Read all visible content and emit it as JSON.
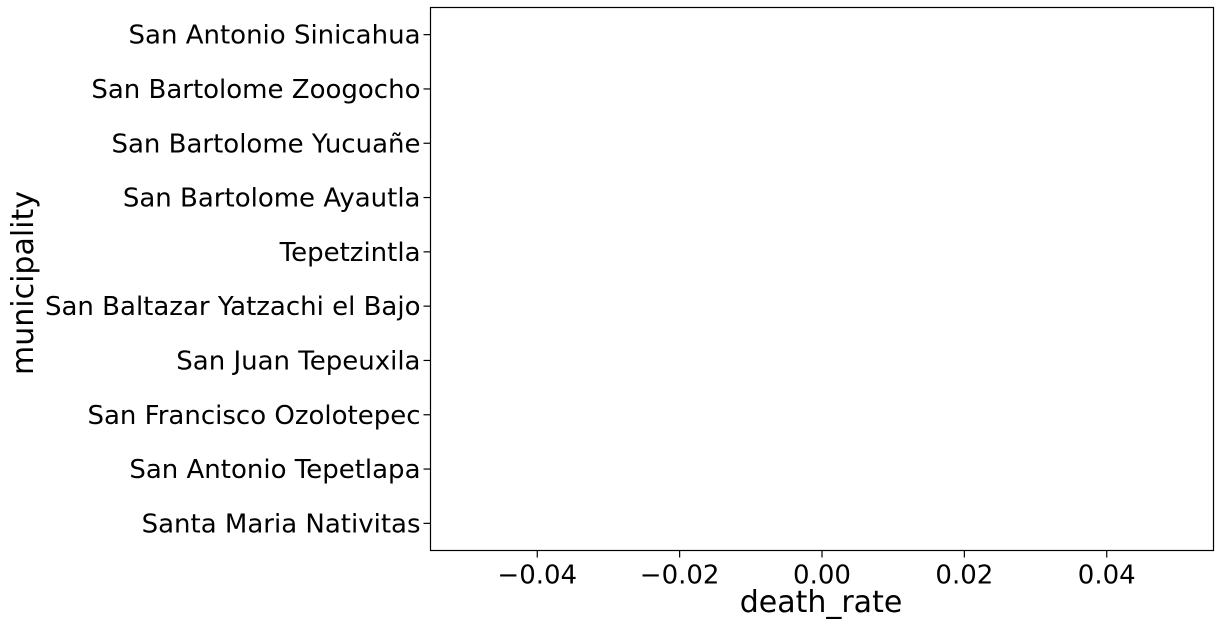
{
  "chart_data": {
    "type": "bar",
    "orientation": "horizontal",
    "xlabel": "death_rate",
    "ylabel": "municipality",
    "categories": [
      "San Antonio Sinicahua",
      "San Bartolome Zoogocho",
      "San Bartolome Yucuañe",
      "San Bartolome Ayautla",
      "Tepetzintla",
      "San Baltazar Yatzachi el Bajo",
      "San Juan Tepeuxila",
      "San Francisco Ozolotepec",
      "San Antonio Tepetlapa",
      "Santa Maria Nativitas"
    ],
    "values": [
      0,
      0,
      0,
      0,
      0,
      0,
      0,
      0,
      0,
      0
    ],
    "xlim": [
      -0.055,
      0.055
    ],
    "xticks": [
      -0.04,
      -0.02,
      0.0,
      0.02,
      0.04
    ],
    "xtick_labels": [
      "−0.04",
      "−0.02",
      "0.00",
      "0.02",
      "0.04"
    ],
    "grid": false,
    "legend": "none",
    "colors": {
      "axis": "#000000",
      "bar": "#1f77b4",
      "background": "#ffffff"
    }
  }
}
